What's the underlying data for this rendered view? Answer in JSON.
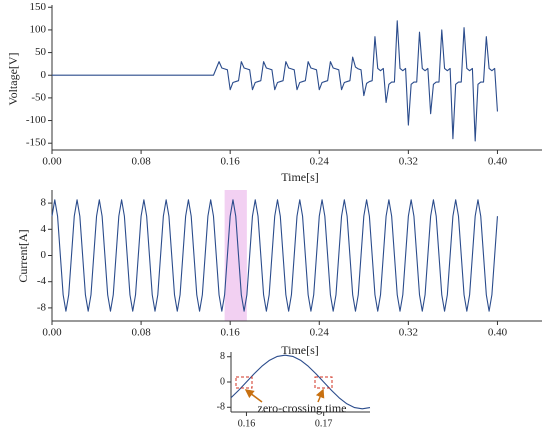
{
  "chart_data": [
    {
      "type": "line",
      "ylabel": "Voltage[V]",
      "xlabel": "Time[s]",
      "color": "#2b4c8c",
      "xlim": [
        0,
        0.44
      ],
      "ylim": [
        -165,
        155
      ],
      "xticks": [
        {
          "value": 0,
          "label": "0.00"
        },
        0.08,
        0.16,
        0.24,
        0.32,
        {
          "value": 0.4,
          "label": "0.40"
        }
      ],
      "yticks": [
        150,
        100,
        50,
        0,
        -50,
        -100,
        -150
      ],
      "x": [
        0,
        0.145,
        0.15,
        0.1525,
        0.155,
        0.1575,
        0.16,
        0.1625,
        0.165,
        0.1675,
        0.17,
        0.1725,
        0.175,
        0.1775,
        0.18,
        0.1825,
        0.185,
        0.1875,
        0.19,
        0.1925,
        0.195,
        0.1975,
        0.2,
        0.2025,
        0.205,
        0.2075,
        0.21,
        0.2125,
        0.215,
        0.2175,
        0.22,
        0.2225,
        0.225,
        0.2275,
        0.23,
        0.2325,
        0.235,
        0.2375,
        0.24,
        0.2425,
        0.245,
        0.2475,
        0.25,
        0.2525,
        0.255,
        0.2575,
        0.26,
        0.2625,
        0.265,
        0.2675,
        0.27,
        0.2725,
        0.275,
        0.2775,
        0.28,
        0.2825,
        0.285,
        0.2875,
        0.29,
        0.2925,
        0.295,
        0.2975,
        0.3,
        0.3025,
        0.305,
        0.3075,
        0.31,
        0.3125,
        0.315,
        0.3175,
        0.32,
        0.3225,
        0.325,
        0.3275,
        0.33,
        0.3325,
        0.335,
        0.3375,
        0.34,
        0.3425,
        0.345,
        0.3475,
        0.35,
        0.3525,
        0.355,
        0.3575,
        0.36,
        0.3625,
        0.365,
        0.3675,
        0.37,
        0.3725,
        0.375,
        0.3775,
        0.38,
        0.3825,
        0.385,
        0.3875,
        0.39,
        0.3925,
        0.395,
        0.3975,
        0.4
      ],
      "values": [
        0,
        0,
        30,
        16,
        14,
        12,
        -32,
        -16,
        -14,
        -12,
        30,
        16,
        14,
        12,
        -32,
        -16,
        -14,
        -12,
        30,
        16,
        14,
        12,
        -32,
        -16,
        -14,
        -12,
        30,
        16,
        14,
        12,
        -32,
        -16,
        -14,
        -12,
        30,
        16,
        14,
        12,
        -32,
        -16,
        -14,
        -12,
        30,
        16,
        14,
        12,
        -32,
        -16,
        -14,
        -12,
        40,
        18,
        14,
        12,
        -45,
        -18,
        -14,
        -12,
        85,
        15,
        10,
        15,
        -60,
        -20,
        -15,
        -15,
        120,
        15,
        10,
        15,
        -110,
        -20,
        -15,
        -15,
        95,
        15,
        10,
        15,
        -85,
        -20,
        -15,
        -15,
        100,
        15,
        10,
        15,
        -140,
        -20,
        -15,
        -15,
        105,
        15,
        10,
        15,
        -145,
        -20,
        -15,
        -15,
        85,
        15,
        10,
        15,
        -80
      ]
    },
    {
      "type": "line",
      "ylabel": "Current[A]",
      "xlabel": "Time[s]",
      "color": "#2b4c8c",
      "highlight": [
        0.155,
        0.175
      ],
      "highlight_color": "#f0c8f0",
      "xlim": [
        0,
        0.44
      ],
      "ylim": [
        -10,
        10
      ],
      "xticks": [
        {
          "value": 0,
          "label": "0.00"
        },
        0.08,
        0.16,
        0.24,
        0.32,
        {
          "value": 0.4,
          "label": "0.40"
        }
      ],
      "yticks": [
        8,
        4,
        0,
        -4,
        -8
      ],
      "x": [
        0,
        0.0025,
        0.005,
        0.0075,
        0.01,
        0.0125,
        0.015,
        0.0175,
        0.02,
        0.0225,
        0.025,
        0.0275,
        0.03,
        0.0325,
        0.035,
        0.0375,
        0.04,
        0.0425,
        0.045,
        0.0475,
        0.05,
        0.0525,
        0.055,
        0.0575,
        0.06,
        0.0625,
        0.065,
        0.0675,
        0.07,
        0.0725,
        0.075,
        0.0775,
        0.08,
        0.0825,
        0.085,
        0.0875,
        0.09,
        0.0925,
        0.095,
        0.0975,
        0.1,
        0.1025,
        0.105,
        0.1075,
        0.11,
        0.1125,
        0.115,
        0.1175,
        0.12,
        0.1225,
        0.125,
        0.1275,
        0.13,
        0.1325,
        0.135,
        0.1375,
        0.14,
        0.1425,
        0.145,
        0.1475,
        0.15,
        0.1525,
        0.155,
        0.1575,
        0.16,
        0.1625,
        0.165,
        0.1675,
        0.17,
        0.1725,
        0.175,
        0.1775,
        0.18,
        0.1825,
        0.185,
        0.1875,
        0.19,
        0.1925,
        0.195,
        0.1975,
        0.2,
        0.2025,
        0.205,
        0.2075,
        0.21,
        0.2125,
        0.215,
        0.2175,
        0.22,
        0.2225,
        0.225,
        0.2275,
        0.23,
        0.2325,
        0.235,
        0.2375,
        0.24,
        0.2425,
        0.245,
        0.2475,
        0.25,
        0.2525,
        0.255,
        0.2575,
        0.26,
        0.2625,
        0.265,
        0.2675,
        0.27,
        0.2725,
        0.275,
        0.2775,
        0.28,
        0.2825,
        0.285,
        0.2875,
        0.29,
        0.2925,
        0.295,
        0.2975,
        0.3,
        0.3025,
        0.305,
        0.3075,
        0.31,
        0.3125,
        0.315,
        0.3175,
        0.32,
        0.3225,
        0.325,
        0.3275,
        0.33,
        0.3325,
        0.335,
        0.3375,
        0.34,
        0.3425,
        0.345,
        0.3475,
        0.35,
        0.3525,
        0.355,
        0.3575,
        0.36,
        0.3625,
        0.365,
        0.3675,
        0.37,
        0.3725,
        0.375,
        0.3775,
        0.38,
        0.3825,
        0.385,
        0.3875,
        0.39,
        0.3925,
        0.395,
        0.3975,
        0.4
      ],
      "values": [
        6,
        8.5,
        6,
        0,
        -6,
        -8.5,
        -6,
        0,
        6,
        8.5,
        6,
        0,
        -6,
        -8.5,
        -6,
        0,
        6,
        8.5,
        6,
        0,
        -6,
        -8.5,
        -6,
        0,
        6,
        8.5,
        6,
        0,
        -6,
        -8.5,
        -6,
        0,
        6,
        8.5,
        6,
        0,
        -6,
        -8.5,
        -6,
        0,
        6,
        8.5,
        6,
        0,
        -6,
        -8.5,
        -6,
        0,
        6,
        8.5,
        6,
        0,
        -6,
        -8.5,
        -6,
        0,
        6,
        8.5,
        6,
        0,
        -6,
        -8.5,
        -6,
        0,
        6,
        8.5,
        6,
        0,
        -6,
        -8.5,
        -6,
        0,
        6,
        8.5,
        6,
        0,
        -6,
        -8.5,
        -6,
        0,
        6,
        8.5,
        6,
        0,
        -6,
        -8.5,
        -6,
        0,
        6,
        8.5,
        6,
        0,
        -6,
        -8.5,
        -6,
        0,
        6,
        8.5,
        6,
        0,
        -6,
        -8.5,
        -6,
        0,
        6,
        8.5,
        6,
        0,
        -6,
        -8.5,
        -6,
        0,
        6,
        8.5,
        6,
        0,
        -6,
        -8.5,
        -6,
        0,
        6,
        8.5,
        6,
        0,
        -6,
        -8.5,
        -6,
        0,
        6,
        8.5,
        6,
        0,
        -6,
        -8.5,
        -6,
        0,
        6,
        8.5,
        6,
        0,
        -6,
        -8.5,
        -6,
        0,
        6,
        8.5,
        6,
        0,
        -6,
        -8.5,
        -6,
        0,
        6,
        8.5,
        6,
        0,
        -6,
        -8.5,
        -6,
        0,
        6
      ]
    },
    {
      "type": "line",
      "annotation": "zero-crossing time",
      "color": "#2b4c8c",
      "xlim": [
        0.158,
        0.176
      ],
      "ylim": [
        -9.5,
        9.5
      ],
      "xticks": [
        0.16,
        0.17
      ],
      "yticks": [
        8,
        0,
        -8
      ],
      "x": [
        0.158,
        0.159,
        0.16,
        0.161,
        0.162,
        0.163,
        0.164,
        0.165,
        0.166,
        0.167,
        0.168,
        0.169,
        0.17,
        0.171,
        0.172,
        0.173,
        0.174,
        0.175,
        0.176
      ],
      "values": [
        -5,
        -2.6,
        0,
        2.6,
        5,
        6.9,
        8.1,
        8.5,
        8.1,
        6.9,
        5,
        2.6,
        0,
        -2.6,
        -5,
        -6.9,
        -8.1,
        -8.5,
        -8.1
      ]
    }
  ]
}
